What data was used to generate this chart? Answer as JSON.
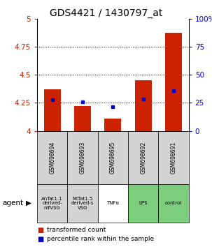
{
  "title": "GDS4421 / 1430797_at",
  "samples": [
    "GSM698694",
    "GSM698693",
    "GSM698695",
    "GSM698692",
    "GSM698691"
  ],
  "bar_values": [
    4.37,
    4.22,
    4.11,
    4.45,
    4.87
  ],
  "percentile_values": [
    4.28,
    4.26,
    4.215,
    4.285,
    4.355
  ],
  "ylim_left": [
    4.0,
    5.0
  ],
  "ylim_right": [
    0,
    100
  ],
  "yticks_left": [
    4.0,
    4.25,
    4.5,
    4.75,
    5.0
  ],
  "yticks_right": [
    0,
    25,
    50,
    75,
    100
  ],
  "ytick_labels_left": [
    "4",
    "4.25",
    "4.5",
    "4.75",
    "5"
  ],
  "ytick_labels_right": [
    "0",
    "25",
    "50",
    "75",
    "100%"
  ],
  "agent_labels": [
    "AnTat1.1\nderived-\nmfVSG",
    "MiTat1.5\nderived-s\nVSG",
    "TNFα",
    "LPS",
    "control"
  ],
  "agent_colors": [
    "#d3d3d3",
    "#d3d3d3",
    "#ffffff",
    "#7ccd7c",
    "#7ccd7c"
  ],
  "sample_box_color": "#d3d3d3",
  "bar_color": "#cc2200",
  "marker_color": "#0000cc",
  "bar_width": 0.55,
  "background_color": "#ffffff",
  "title_fontsize": 10,
  "legend_items": [
    "transformed count",
    "percentile rank within the sample"
  ],
  "legend_colors": [
    "#cc2200",
    "#0000cc"
  ]
}
